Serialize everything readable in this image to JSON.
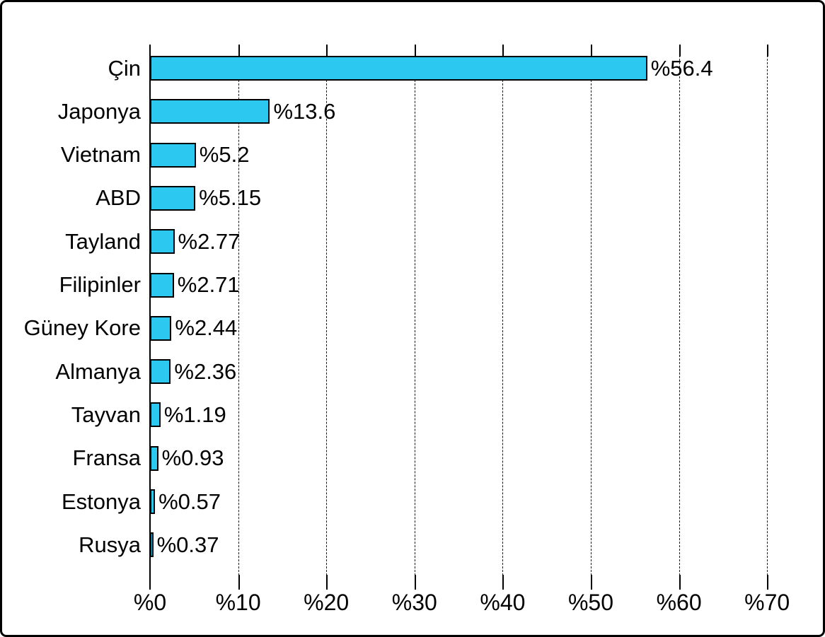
{
  "chart_data": {
    "type": "bar",
    "orientation": "horizontal",
    "title": "",
    "categories": [
      "Çin",
      "Japonya",
      "Vietnam",
      "ABD",
      "Tayland",
      "Filipinler",
      "Güney Kore",
      "Almanya",
      "Tayvan",
      "Fransa",
      "Estonya",
      "Rusya"
    ],
    "values": [
      56.4,
      13.6,
      5.2,
      5.15,
      2.77,
      2.71,
      2.44,
      2.36,
      1.19,
      0.93,
      0.57,
      0.37
    ],
    "value_labels": [
      "%56.4",
      "%13.6",
      "%5.2",
      "%5.15",
      "%2.77",
      "%2.71",
      "%2.44",
      "%2.36",
      "%1.19",
      "%0.93",
      "%0.57",
      "%0.37"
    ],
    "x_ticks": [
      {
        "value": 0,
        "label": "%0"
      },
      {
        "value": 10,
        "label": "%10"
      },
      {
        "value": 20,
        "label": "%20"
      },
      {
        "value": 30,
        "label": "%30"
      },
      {
        "value": 40,
        "label": "%40"
      },
      {
        "value": 50,
        "label": "%50"
      },
      {
        "value": 60,
        "label": "%60"
      },
      {
        "value": 70,
        "label": "%70"
      }
    ],
    "xlim": [
      0,
      76.8
    ],
    "grid": "vertical-dashed",
    "legend": "none",
    "colors": {
      "bar_fill": "#2DC8F0",
      "bar_border": "#000000",
      "text": "#000000",
      "background": "#FFFFFF",
      "frame_border": "#000000"
    }
  }
}
